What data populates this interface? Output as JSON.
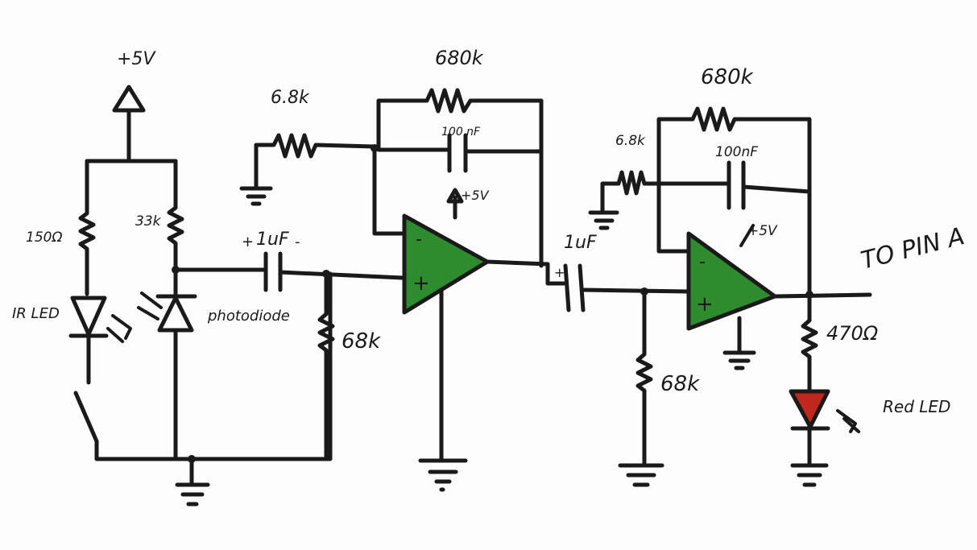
{
  "labels": {
    "supply_top": "+5V",
    "r_150": "150Ω",
    "r_33k": "33k",
    "ir_led": "IR LED",
    "photodiode": "photodiode",
    "c1_pos": "+",
    "c1_value": "1uF",
    "c1_neg": "-",
    "r_68k_1": "68k",
    "r_6k8_1": "6.8k",
    "r_680k_1": "680k",
    "c_100nf_1": "100 nF",
    "opamp1_supply": "+5V",
    "opamp1_minus": "-",
    "opamp1_plus": "+",
    "c2_pos": "+",
    "c2_value": "1uF",
    "r_68k_2": "68k",
    "r_6k8_2": "6.8k",
    "r_680k_2": "680k",
    "c_100nf_2": "100nF",
    "opamp2_supply": "+5V",
    "opamp2_minus": "-",
    "opamp2_plus": "+",
    "output": "TO PIN A",
    "r_470": "470Ω",
    "red_led": "Red LED"
  },
  "colors": {
    "ink": "#1a1a1a",
    "opamp_fill": "#2e8b2e",
    "red_led_fill": "#c0281e"
  }
}
